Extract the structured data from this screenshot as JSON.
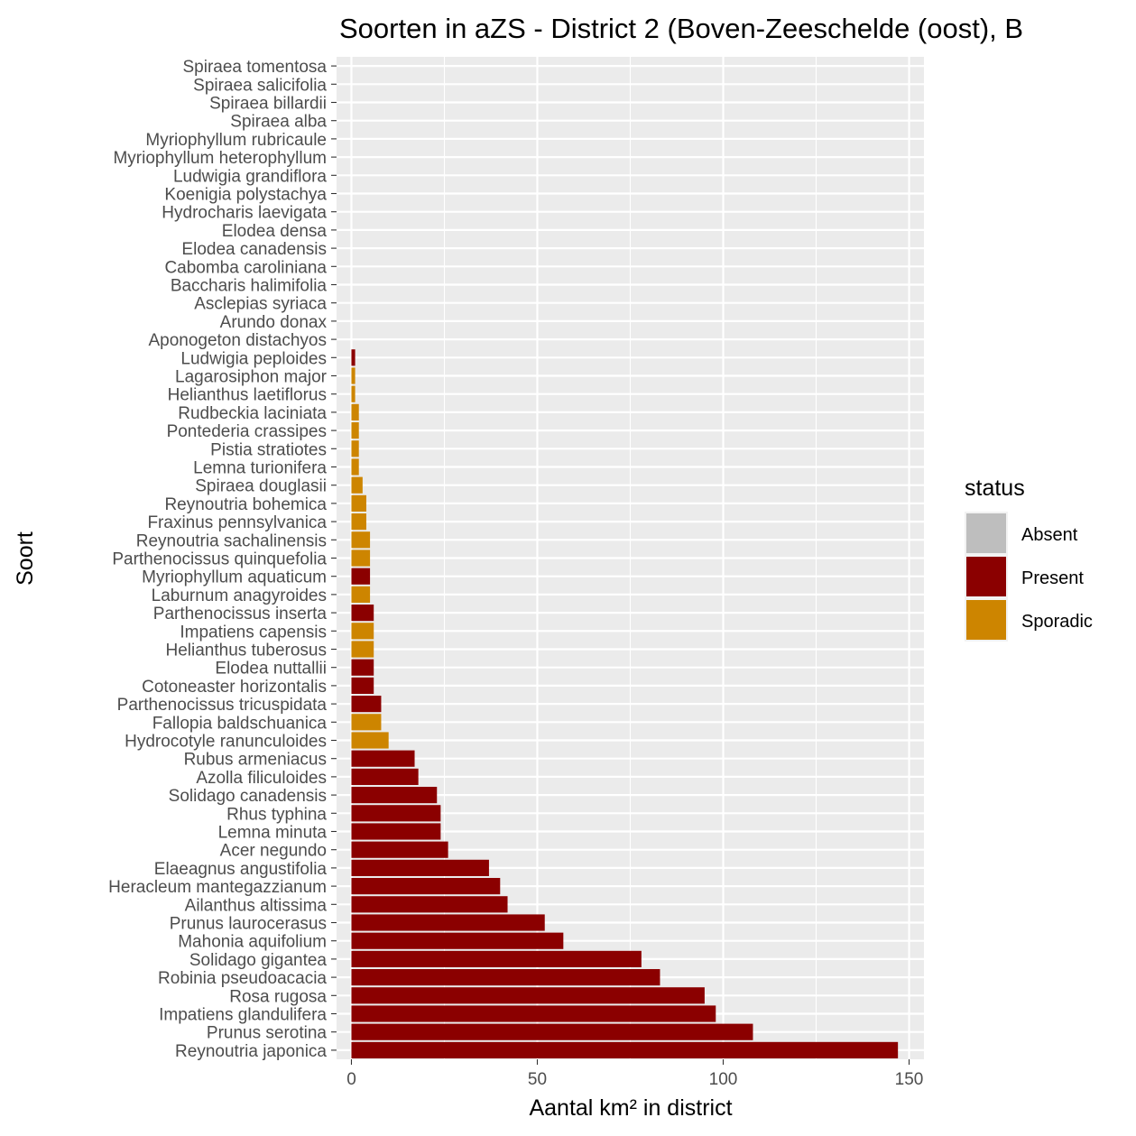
{
  "chart_data": {
    "type": "bar",
    "orientation": "horizontal",
    "title": "Soorten in aZS - District 2 (Boven-Zeeschelde (oost), B",
    "xlabel": "Aantal km² in district",
    "ylabel": "Soort",
    "xlim": [
      -4,
      154
    ],
    "xticks": [
      0,
      50,
      100,
      150
    ],
    "grid": true,
    "legend": {
      "title": "status",
      "position": "right",
      "entries": [
        {
          "label": "Absent",
          "color": "#bebebe"
        },
        {
          "label": "Present",
          "color": "#8b0000"
        },
        {
          "label": "Sporadic",
          "color": "#cd8500"
        }
      ]
    },
    "categories": [
      "Spiraea tomentosa",
      "Spiraea salicifolia",
      "Spiraea billardii",
      "Spiraea alba",
      "Myriophyllum rubricaule",
      "Myriophyllum heterophyllum",
      "Ludwigia grandiflora",
      "Koenigia polystachya",
      "Hydrocharis laevigata",
      "Elodea densa",
      "Elodea canadensis",
      "Cabomba caroliniana",
      "Baccharis halimifolia",
      "Asclepias syriaca",
      "Arundo donax",
      "Aponogeton distachyos",
      "Ludwigia peploides",
      "Lagarosiphon major",
      "Helianthus laetiflorus",
      "Rudbeckia laciniata",
      "Pontederia crassipes",
      "Pistia stratiotes",
      "Lemna turionifera",
      "Spiraea douglasii",
      "Reynoutria bohemica",
      "Fraxinus pennsylvanica",
      "Reynoutria sachalinensis",
      "Parthenocissus quinquefolia",
      "Myriophyllum aquaticum",
      "Laburnum anagyroides",
      "Parthenocissus inserta",
      "Impatiens capensis",
      "Helianthus tuberosus",
      "Elodea nuttallii",
      "Cotoneaster horizontalis",
      "Parthenocissus tricuspidata",
      "Fallopia baldschuanica",
      "Hydrocotyle ranunculoides",
      "Rubus armeniacus",
      "Azolla filiculoides",
      "Solidago canadensis",
      "Rhus typhina",
      "Lemna minuta",
      "Acer negundo",
      "Elaeagnus angustifolia",
      "Heracleum mantegazzianum",
      "Ailanthus altissima",
      "Prunus laurocerasus",
      "Mahonia aquifolium",
      "Solidago gigantea",
      "Robinia pseudoacacia",
      "Rosa rugosa",
      "Impatiens glandulifera",
      "Prunus serotina",
      "Reynoutria japonica"
    ],
    "values": [
      0,
      0,
      0,
      0,
      0,
      0,
      0,
      0,
      0,
      0,
      0,
      0,
      0,
      0,
      0,
      0,
      1,
      1,
      1,
      2,
      2,
      2,
      2,
      3,
      4,
      4,
      5,
      5,
      5,
      5,
      6,
      6,
      6,
      6,
      6,
      8,
      8,
      10,
      17,
      18,
      23,
      24,
      24,
      26,
      37,
      40,
      42,
      52,
      57,
      78,
      83,
      95,
      98,
      108,
      147
    ],
    "status": [
      "Absent",
      "Absent",
      "Absent",
      "Absent",
      "Absent",
      "Absent",
      "Absent",
      "Absent",
      "Absent",
      "Absent",
      "Absent",
      "Absent",
      "Absent",
      "Absent",
      "Absent",
      "Absent",
      "Present",
      "Sporadic",
      "Sporadic",
      "Sporadic",
      "Sporadic",
      "Sporadic",
      "Sporadic",
      "Sporadic",
      "Sporadic",
      "Sporadic",
      "Sporadic",
      "Sporadic",
      "Present",
      "Sporadic",
      "Present",
      "Sporadic",
      "Sporadic",
      "Present",
      "Present",
      "Present",
      "Sporadic",
      "Sporadic",
      "Present",
      "Present",
      "Present",
      "Present",
      "Present",
      "Present",
      "Present",
      "Present",
      "Present",
      "Present",
      "Present",
      "Present",
      "Present",
      "Present",
      "Present",
      "Present",
      "Present"
    ]
  }
}
